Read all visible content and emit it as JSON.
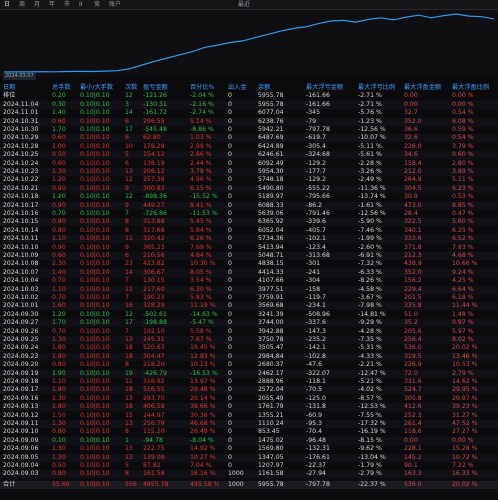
{
  "toolbar": {
    "tabs": [
      "日",
      "周",
      "月",
      "年",
      "市",
      "II",
      "竞",
      "账户"
    ],
    "extra": "最近"
  },
  "chart_data": {
    "type": "line",
    "color": "#2e9bf0",
    "start_label": "2024.03.07",
    "values": [
      1000,
      1010,
      1005,
      1030,
      1020,
      1045,
      1060,
      1050,
      1080,
      1120,
      1300,
      1650,
      2000,
      2300,
      2600,
      2900,
      3300,
      3500,
      3750,
      3900,
      4200,
      4500,
      4800,
      5050,
      5200,
      5500,
      5750,
      5800,
      5650,
      5900,
      6050,
      5850,
      6100,
      6300,
      6050,
      6250,
      6400,
      6200,
      6150,
      5950
    ]
  },
  "table": {
    "header": [
      "日期",
      "总手数",
      "最小/大手数",
      "次数",
      "盈亏金额",
      "百分比%",
      "出入金",
      "余额",
      "最大浮亏金额",
      "最大浮亏比例",
      "最大浮盈金额",
      "最大浮盈比例"
    ],
    "rows": [
      [
        "排位",
        "0.20",
        "0.10|0.10",
        "12",
        "-121.26",
        "-2.04 %",
        "0",
        "5955.78",
        "-161.66",
        "-2.71 %",
        "0.00",
        "0.00 %"
      ],
      [
        "2024.11.04",
        "0.30",
        "0.10|0.10",
        "3",
        "-130.31",
        "-2.16 %",
        "0",
        "5955.78",
        "-161.66",
        "-2.71 %",
        "0.00",
        "0.00 %"
      ],
      [
        "2024.11.01",
        "1.40",
        "0.10|0.10",
        "14",
        "-161.72",
        "-2.74 %",
        "0",
        "6077.04",
        "-345",
        "-5.76 %",
        "32.7",
        "0.54 %"
      ],
      [
        "2024.10.31",
        "0.60",
        "0.10|0.10",
        "6",
        "296.55",
        "5.14 %",
        "0",
        "6238.76",
        "-79",
        "-1.23 %",
        "352.0",
        "6.08 %"
      ],
      [
        "2024.10.30",
        "1.70",
        "0.10|0.10",
        "17",
        "-545.48",
        "-8.86 %",
        "0",
        "5942.21",
        "-797.78",
        "-12.56 %",
        "36.6",
        "0.59 %"
      ],
      [
        "2024.10.29",
        "0.60",
        "0.10|0.10",
        "6",
        "62.80",
        "1.03 %",
        "0",
        "6487.69",
        "-619.7",
        "-10.07 %",
        "32.6",
        "0.54 %"
      ],
      [
        "2024.10.28",
        "1.00",
        "0.10|0.10",
        "10",
        "178.28",
        "2.99 %",
        "0",
        "6424.89",
        "-305.4",
        "-5.11 %",
        "226.0",
        "3.79 %"
      ],
      [
        "2024.10.25",
        "0.50",
        "0.10|0.10",
        "5",
        "154.12",
        "2.66 %",
        "0",
        "6246.61",
        "-324.68",
        "-5.61 %",
        "34.6",
        "0.60 %"
      ],
      [
        "2024.10.24",
        "0.60",
        "0.10|0.10",
        "6",
        "138.19",
        "2.44 %",
        "0",
        "6092.49",
        "-129.2",
        "-2.28 %",
        "158.4",
        "2.80 %"
      ],
      [
        "2024.10.23",
        "1.30",
        "0.10|0.10",
        "13",
        "206.12",
        "3.78 %",
        "0",
        "5954.30",
        "-177.7",
        "-3.26 %",
        "212.0",
        "3.89 %"
      ],
      [
        "2024.10.22",
        "1.20",
        "0.10|0.10",
        "12",
        "257.38",
        "4.96 %",
        "0",
        "5748.18",
        "-129.2",
        "-2.49 %",
        "264.9",
        "5.11 %"
      ],
      [
        "2024.10.21",
        "0.90",
        "0.10|0.10",
        "9",
        "300.83",
        "6.15 %",
        "0",
        "5490.80",
        "-555.22",
        "-11.36 %",
        "304.5",
        "6.23 %"
      ],
      [
        "2024.10.18",
        "1.20",
        "0.10|0.10",
        "12",
        "-898.36",
        "-15.52 %",
        "0",
        "5189.97",
        "-795.66",
        "-13.74 %",
        "30.9",
        "0.53 %"
      ],
      [
        "2024.10.17",
        "0.90",
        "0.10|0.10",
        "9",
        "449.27",
        "8.41 %",
        "0",
        "6088.33",
        "-86.2",
        "-1.61 %",
        "473.0",
        "8.85 %"
      ],
      [
        "2024.10.16",
        "0.70",
        "0.10|0.10",
        "7",
        "-726.86",
        "-11.53 %",
        "0",
        "5639.06",
        "-791.46",
        "-12.56 %",
        "28.4",
        "0.47 %"
      ],
      [
        "2024.10.15",
        "0.80",
        "0.10|0.10",
        "8",
        "313.88",
        "5.45 %",
        "0",
        "6365.92",
        "-339.6",
        "-5.90 %",
        "322.5",
        "5.60 %"
      ],
      [
        "2024.10.14",
        "0.80",
        "0.10|0.10",
        "8",
        "317.68",
        "5.84 %",
        "0",
        "6052.04",
        "-405.7",
        "-7.46 %",
        "340.1",
        "6.25 %"
      ],
      [
        "2024.10.11",
        "1.10",
        "0.10|0.10",
        "11",
        "320.42",
        "6.26 %",
        "0",
        "5734.36",
        "-102.1",
        "-1.99 %",
        "333.6",
        "6.52 %"
      ],
      [
        "2024.10.10",
        "0.90",
        "0.10|0.10",
        "9",
        "365.23",
        "7.69 %",
        "0",
        "5413.94",
        "-123.4",
        "-2.60 %",
        "371.8",
        "7.83 %"
      ],
      [
        "2024.10.09",
        "0.60",
        "0.10|0.10",
        "6",
        "210.56",
        "4.64 %",
        "0",
        "5048.71",
        "-313.68",
        "-6.91 %",
        "212.3",
        "4.68 %"
      ],
      [
        "2024.10.08",
        "2.30",
        "0.10|0.10",
        "23",
        "423.82",
        "10.30 %",
        "0",
        "4838.15",
        "-301",
        "-7.32 %",
        "438.9",
        "10.66 %"
      ],
      [
        "2024.10.07",
        "1.40",
        "0.10|0.10",
        "14",
        "306.67",
        "8.05 %",
        "0",
        "4414.33",
        "-241",
        "-6.33 %",
        "352.0",
        "9.24 %"
      ],
      [
        "2024.10.04",
        "0.70",
        "0.10|0.10",
        "7",
        "130.15",
        "3.54 %",
        "0",
        "4107.66",
        "-304",
        "-8.26 %",
        "156.2",
        "4.25 %"
      ],
      [
        "2024.10.03",
        "1.10",
        "0.10|0.10",
        "11",
        "217.60",
        "6.30 %",
        "0",
        "3977.51",
        "-158",
        "-4.58 %",
        "229.4",
        "6.64 %"
      ],
      [
        "2024.10.02",
        "0.70",
        "0.10|0.10",
        "7",
        "190.23",
        "5.83 %",
        "0",
        "3759.91",
        "-119.7",
        "-3.67 %",
        "201.5",
        "6.18 %"
      ],
      [
        "2024.10.01",
        "1.60",
        "0.10|0.10",
        "16",
        "328.29",
        "11.19 %",
        "0",
        "3569.68",
        "-234.1",
        "-7.98 %",
        "335.8",
        "11.44 %"
      ],
      [
        "2024.09.30",
        "1.20",
        "0.10|0.10",
        "12",
        "-502.61",
        "-14.63 %",
        "0",
        "3241.39",
        "-508.96",
        "-14.81 %",
        "51.0",
        "1.48 %"
      ],
      [
        "2024.09.27",
        "1.70",
        "0.10|0.10",
        "17",
        "-198.88",
        "-5.47 %",
        "0",
        "3744.00",
        "-337.6",
        "-9.29 %",
        "35.2",
        "0.97 %"
      ],
      [
        "2024.09.26",
        "0.70",
        "0.10|0.10",
        "7",
        "192.10",
        "5.58 %",
        "0",
        "3942.88",
        "-147.3",
        "-4.28 %",
        "205.6",
        "5.97 %"
      ],
      [
        "2024.09.25",
        "1.30",
        "0.10|0.10",
        "13",
        "245.31",
        "7.67 %",
        "0",
        "3750.78",
        "-235.2",
        "-7.35 %",
        "256.4",
        "8.02 %"
      ],
      [
        "2024.09.24",
        "1.80",
        "0.10|0.10",
        "18",
        "520.63",
        "19.45 %",
        "0",
        "3505.47",
        "-142.1",
        "-5.31 %",
        "536.0",
        "20.02 %"
      ],
      [
        "2024.09.23",
        "1.80",
        "0.10|0.10",
        "18",
        "304.47",
        "12.83 %",
        "0",
        "2984.84",
        "-102.8",
        "-4.33 %",
        "319.5",
        "13.46 %"
      ],
      [
        "2024.09.20",
        "0.80",
        "0.10|0.10",
        "8",
        "218.20",
        "10.13 %",
        "0",
        "2680.37",
        "-47.6",
        "-2.21 %",
        "226.9",
        "10.53 %"
      ],
      [
        "2024.09.19",
        "1.90",
        "0.10|0.10",
        "19",
        "-426.79",
        "-16.53 %",
        "0",
        "2462.17",
        "-322.07",
        "-12.47 %",
        "72.0",
        "2.79 %"
      ],
      [
        "2024.09.18",
        "1.10",
        "0.10|0.10",
        "11",
        "316.92",
        "13.97 %",
        "0",
        "2888.96",
        "-118.1",
        "-5.21 %",
        "331.6",
        "14.62 %"
      ],
      [
        "2024.09.17",
        "1.80",
        "0.10|0.10",
        "18",
        "516.55",
        "29.48 %",
        "0",
        "2572.04",
        "-70.5",
        "-4.02 %",
        "524.7",
        "29.95 %"
      ],
      [
        "2024.09.16",
        "1.30",
        "0.10|0.10",
        "13",
        "293.70",
        "20.14 %",
        "0",
        "2055.49",
        "-125.0",
        "-8.57 %",
        "305.8",
        "20.97 %"
      ],
      [
        "2024.09.13",
        "1.80",
        "0.10|0.10",
        "18",
        "406.58",
        "38.66 %",
        "0",
        "1761.79",
        "-131.8",
        "-12.53 %",
        "412.6",
        "39.23 %"
      ],
      [
        "2024.09.12",
        "1.50",
        "0.10|0.10",
        "15",
        "244.97",
        "30.36 %",
        "0",
        "1355.21",
        "-60.9",
        "-7.55 %",
        "252.3",
        "31.27 %"
      ],
      [
        "2024.09.11",
        "1.30",
        "0.10|0.10",
        "13",
        "256.79",
        "46.68 %",
        "0",
        "1110.24",
        "-95.3",
        "-17.32 %",
        "261.4",
        "47.52 %"
      ],
      [
        "2024.09.10",
        "0.80",
        "0.10|0.10",
        "8",
        "115.20",
        "26.49 %",
        "0",
        "853.45",
        "-70.4",
        "-16.19 %",
        "118.6",
        "27.27 %"
      ],
      [
        "2024.09.09",
        "0.10",
        "0.10|0.10",
        "1",
        "-94.78",
        "-8.04 %",
        "0",
        "1475.02",
        "-96.48",
        "-8.15 %",
        "0.00",
        "0.00 %"
      ],
      [
        "2024.09.06",
        "1.30",
        "0.10|0.10",
        "13",
        "222.75",
        "14.92 %",
        "0",
        "1569.80",
        "-132.31",
        "-9.62 %",
        "228.1",
        "15.28 %"
      ],
      [
        "2024.09.05",
        "1.30",
        "0.10|0.10",
        "13",
        "139.08",
        "10.27 %",
        "0",
        "1347.05",
        "-176.61",
        "-13.04 %",
        "145.2",
        "10.72 %"
      ],
      [
        "2024.09.04",
        "0.50",
        "0.10|0.10",
        "5",
        "87.82",
        "7.04 %",
        "0",
        "1207.97",
        "-22.37",
        "-1.79 %",
        "90.1",
        "7.22 %"
      ],
      [
        "2024.09.03",
        "0.80",
        "0.10|0.10",
        "8",
        "161.58",
        "16.16 %",
        "1000",
        "1161.58",
        "-27.94",
        "-2.79 %",
        "163.3",
        "16.33 %"
      ]
    ],
    "total": [
      "合计",
      "55.60",
      "0.10|0.10",
      "556",
      "4955.78",
      "495.58 %",
      "1000",
      "5955.78",
      "-797.78",
      "-22.37 %",
      "536.0",
      "20.02 %"
    ]
  }
}
